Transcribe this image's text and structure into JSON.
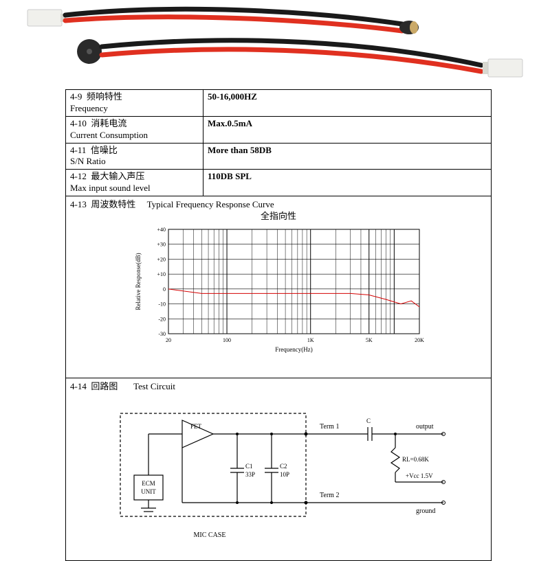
{
  "specs": [
    {
      "id": "4-9",
      "cn": "频响特性",
      "en": "Frequency",
      "value": "50-16,000HZ"
    },
    {
      "id": "4-10",
      "cn": "消耗电流",
      "en": "Current Consumption",
      "value": "Max.0.5mA"
    },
    {
      "id": "4-11",
      "cn": "信噪比",
      "en": "S/N Ratio",
      "value": "More than 58DB"
    },
    {
      "id": "4-12",
      "cn": "最大输入声压",
      "en": "Max input sound level",
      "value": "110DB SPL"
    }
  ],
  "freq_section": {
    "id": "4-13",
    "cn": "周波数特性",
    "title": "Typical Frequency Response Curve",
    "subtitle": "全指向性"
  },
  "circuit_section": {
    "id": "4-14",
    "cn": "回路图",
    "title": "Test Circuit"
  },
  "freq_chart": {
    "type": "line",
    "xlabel": "Frequency(Hz)",
    "ylabel": "Relative Response(dB)",
    "x_scale": "log",
    "x_ticks": [
      20,
      100,
      1000,
      5000,
      20000
    ],
    "x_tick_labels": [
      "20",
      "100",
      "1K",
      "5K",
      "20K"
    ],
    "y_ticks": [
      -30,
      -20,
      -10,
      0,
      10,
      20,
      30,
      40
    ],
    "y_tick_labels": [
      "-30",
      "-20",
      "-10",
      "0",
      "+10",
      "+20",
      "+30",
      "+40"
    ],
    "ylim": [
      -30,
      40
    ],
    "grid_color": "#000000",
    "line_color": "#d40000",
    "line_width": 1,
    "background_color": "#ffffff",
    "axis_fontsize": 8,
    "label_fontsize": 9,
    "data_points": [
      {
        "hz": 20,
        "db": 0
      },
      {
        "hz": 50,
        "db": -3
      },
      {
        "hz": 100,
        "db": -3
      },
      {
        "hz": 500,
        "db": -3
      },
      {
        "hz": 1000,
        "db": -3
      },
      {
        "hz": 3000,
        "db": -3
      },
      {
        "hz": 5000,
        "db": -4
      },
      {
        "hz": 8000,
        "db": -7
      },
      {
        "hz": 12000,
        "db": -10
      },
      {
        "hz": 16000,
        "db": -8
      },
      {
        "hz": 20000,
        "db": -12
      }
    ]
  },
  "circuit": {
    "caption": "MIC CASE",
    "ecm_label": "ECM\nUNIT",
    "fet_label": "FET",
    "c1_label": "C1\n33P",
    "c2_label": "C2\n10P",
    "term1": "Term 1",
    "term2": "Term 2",
    "c_label": "C",
    "output": "output",
    "rl": "RL=0.68K",
    "vcc": "+Vcc 1.5V",
    "ground": "ground",
    "line_color": "#000000",
    "dash": "4 3",
    "fontsize": 10
  },
  "photo": {
    "wire_red": "#e03020",
    "wire_black": "#1a1a1a",
    "connector": "#f0f0ec",
    "mic_cap": "#2a2a2a"
  }
}
